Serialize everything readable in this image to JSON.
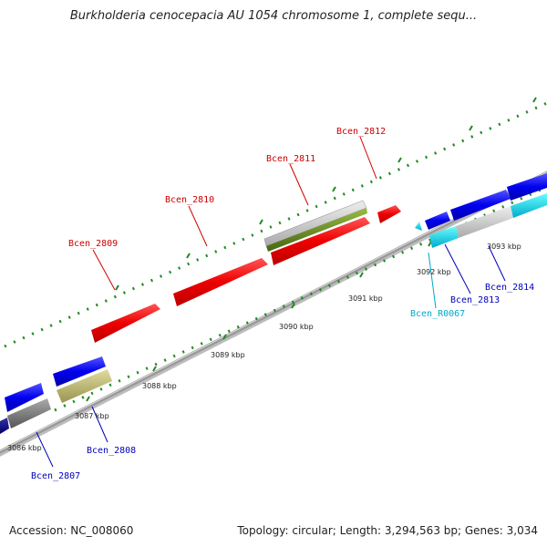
{
  "title": "Burkholderia cenocepacia AU 1054 chromosome 1, complete sequ...",
  "footer": {
    "accession": "Accession: NC_008060",
    "summary": "Topology: circular; Length: 3,294,563 bp; Genes: 3,034"
  },
  "scale_ticks": [
    {
      "label": "3086 kbp"
    },
    {
      "label": "3087 kbp"
    },
    {
      "label": "3088 kbp"
    },
    {
      "label": "3089 kbp"
    },
    {
      "label": "3090 kbp"
    },
    {
      "label": "3091 kbp"
    },
    {
      "label": "3092 kbp"
    },
    {
      "label": "3093 kbp"
    }
  ],
  "gene_labels": [
    {
      "label": "Bcen_2807",
      "color": "#0000bb"
    },
    {
      "label": "Bcen_2808",
      "color": "#0000bb"
    },
    {
      "label": "Bcen_2809",
      "color": "#cc0000"
    },
    {
      "label": "Bcen_2810",
      "color": "#cc0000"
    },
    {
      "label": "Bcen_2811",
      "color": "#cc0000"
    },
    {
      "label": "Bcen_2812",
      "color": "#cc0000"
    },
    {
      "label": "Bcen_R0067",
      "color": "#00aacc"
    },
    {
      "label": "Bcen_2813",
      "color": "#0000bb"
    },
    {
      "label": "Bcen_2814",
      "color": "#0000bb"
    }
  ],
  "colors": {
    "forward_gene": "#ff0000",
    "reverse_gene": "#0000ee",
    "rna_gene": "#00ccdd",
    "backbone": "#888888",
    "gc_dots": "#228822"
  }
}
